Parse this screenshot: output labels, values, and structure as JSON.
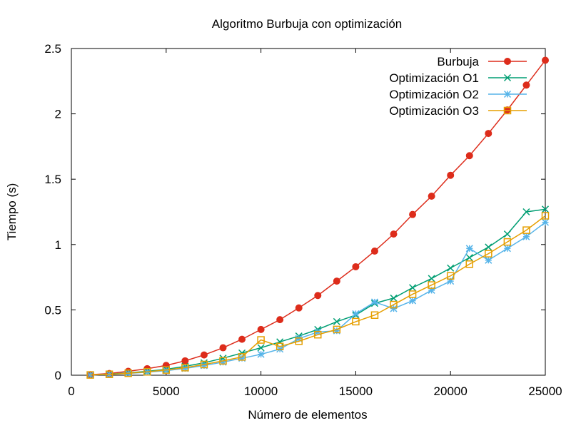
{
  "chart_data": {
    "type": "line",
    "title": "Algoritmo Burbuja con optimización",
    "xlabel": "Número de elementos",
    "ylabel": "Tiempo (s)",
    "xlim": [
      0,
      25000
    ],
    "ylim": [
      0,
      2.5
    ],
    "x_ticks": [
      "0",
      "5000",
      "10000",
      "15000",
      "20000",
      "25000"
    ],
    "y_ticks": [
      "0",
      "0.5",
      "1",
      "1.5",
      "2",
      "2.5"
    ],
    "grid": false,
    "legend_position": "top-right",
    "x": [
      1000,
      2000,
      3000,
      4000,
      5000,
      6000,
      7000,
      8000,
      9000,
      10000,
      11000,
      12000,
      13000,
      14000,
      15000,
      16000,
      17000,
      18000,
      19000,
      20000,
      21000,
      22000,
      23000,
      24000,
      25000
    ],
    "series": [
      {
        "name": "Burbuja",
        "color": "#dd2c1b",
        "marker": "filled-circle",
        "values": [
          0.004,
          0.013,
          0.03,
          0.05,
          0.075,
          0.11,
          0.155,
          0.21,
          0.275,
          0.35,
          0.425,
          0.515,
          0.61,
          0.72,
          0.83,
          0.95,
          1.08,
          1.23,
          1.37,
          1.53,
          1.68,
          1.85,
          2.03,
          2.22,
          2.41
        ]
      },
      {
        "name": "Optimización O1",
        "color": "#009e73",
        "marker": "x",
        "values": [
          0.002,
          0.008,
          0.018,
          0.03,
          0.045,
          0.068,
          0.095,
          0.13,
          0.17,
          0.21,
          0.255,
          0.3,
          0.35,
          0.41,
          0.46,
          0.55,
          0.59,
          0.67,
          0.74,
          0.82,
          0.9,
          0.98,
          1.08,
          1.25,
          1.27
        ]
      },
      {
        "name": "Optimización O2",
        "color": "#56b4e9",
        "marker": "asterisk",
        "values": [
          0.002,
          0.006,
          0.014,
          0.023,
          0.035,
          0.052,
          0.074,
          0.1,
          0.13,
          0.16,
          0.2,
          0.28,
          0.33,
          0.34,
          0.47,
          0.56,
          0.51,
          0.57,
          0.65,
          0.72,
          0.97,
          0.88,
          0.97,
          1.06,
          1.17
        ]
      },
      {
        "name": "Optimización O3",
        "color": "#e69f00",
        "marker": "open-square",
        "values": [
          0.002,
          0.007,
          0.015,
          0.026,
          0.04,
          0.058,
          0.082,
          0.11,
          0.14,
          0.27,
          0.22,
          0.26,
          0.31,
          0.35,
          0.41,
          0.46,
          0.54,
          0.62,
          0.69,
          0.76,
          0.85,
          0.93,
          1.02,
          1.11,
          1.22
        ]
      }
    ]
  }
}
